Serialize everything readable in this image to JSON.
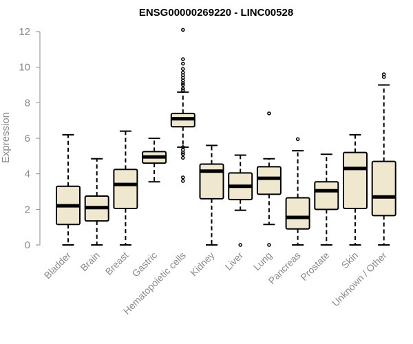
{
  "chart_data": {
    "type": "boxplot",
    "title": "ENSG00000269220 - LINC00528",
    "ylabel": "Expression",
    "xlabel": "",
    "ylim": [
      0,
      12
    ],
    "yticks": [
      0,
      2,
      4,
      6,
      8,
      10,
      12
    ],
    "box_color": "#efe8cf",
    "categories": [
      "Bladder",
      "Brain",
      "Breast",
      "Gastric",
      "Hematopoietic cells",
      "Kidney",
      "Liver",
      "Lung",
      "Pancreas",
      "Prostate",
      "Skin",
      "Unknown / Other"
    ],
    "boxes": [
      {
        "category": "Bladder",
        "whisker_low": 0,
        "q1": 1.15,
        "median": 2.2,
        "q3": 3.3,
        "whisker_high": 6.2,
        "outliers": []
      },
      {
        "category": "Brain",
        "whisker_low": 0,
        "q1": 1.35,
        "median": 2.1,
        "q3": 2.75,
        "whisker_high": 4.85,
        "outliers": []
      },
      {
        "category": "Breast",
        "whisker_low": 0,
        "q1": 2.05,
        "median": 3.4,
        "q3": 4.25,
        "whisker_high": 6.4,
        "outliers": []
      },
      {
        "category": "Gastric",
        "whisker_low": 3.55,
        "q1": 4.6,
        "median": 4.95,
        "q3": 5.25,
        "whisker_high": 6.0,
        "outliers": []
      },
      {
        "category": "Hematopoietic cells",
        "whisker_low": 5.5,
        "q1": 6.65,
        "median": 7.1,
        "q3": 7.4,
        "whisker_high": 8.6,
        "outliers": [
          3.6,
          3.8,
          4.9,
          5.1,
          5.2,
          5.35,
          5.5,
          8.7,
          8.8,
          9.0,
          9.1,
          9.25,
          9.4,
          9.55,
          9.7,
          9.9,
          10.2,
          10.45,
          12.1
        ]
      },
      {
        "category": "Kidney",
        "whisker_low": 0,
        "q1": 2.6,
        "median": 4.15,
        "q3": 4.55,
        "whisker_high": 5.6,
        "outliers": []
      },
      {
        "category": "Liver",
        "whisker_low": 1.95,
        "q1": 2.55,
        "median": 3.3,
        "q3": 4.05,
        "whisker_high": 5.05,
        "outliers": [
          0
        ]
      },
      {
        "category": "Lung",
        "whisker_low": 1.15,
        "q1": 2.85,
        "median": 3.75,
        "q3": 4.4,
        "whisker_high": 4.85,
        "outliers": [
          0,
          7.4
        ]
      },
      {
        "category": "Pancreas",
        "whisker_low": 0,
        "q1": 0.9,
        "median": 1.55,
        "q3": 2.65,
        "whisker_high": 5.3,
        "outliers": [
          5.95
        ]
      },
      {
        "category": "Prostate",
        "whisker_low": 0,
        "q1": 2.0,
        "median": 3.05,
        "q3": 3.55,
        "whisker_high": 5.1,
        "outliers": []
      },
      {
        "category": "Skin",
        "whisker_low": 0,
        "q1": 2.05,
        "median": 4.3,
        "q3": 5.2,
        "whisker_high": 6.2,
        "outliers": []
      },
      {
        "category": "Unknown / Other",
        "whisker_low": 0,
        "q1": 1.65,
        "median": 2.7,
        "q3": 4.7,
        "whisker_high": 9.0,
        "outliers": [
          9.45,
          9.6
        ]
      }
    ]
  }
}
